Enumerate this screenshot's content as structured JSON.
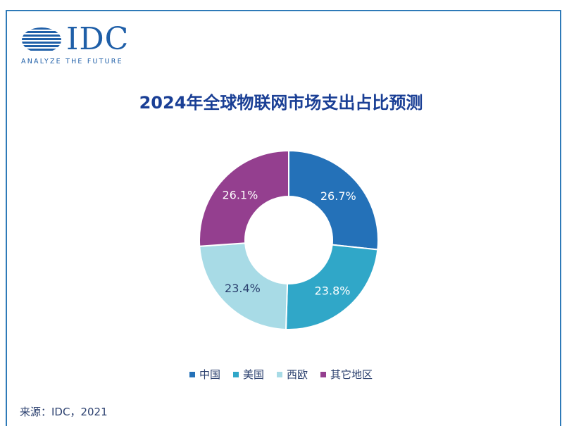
{
  "logo": {
    "wordmark": "IDC",
    "tagline": "ANALYZE THE FUTURE"
  },
  "source": "来源：IDC，2021",
  "chart_data": {
    "type": "pie",
    "donut": true,
    "title": "2024年全球物联网市场支出占比预测",
    "categories": [
      "中国",
      "美国",
      "西欧",
      "其它地区"
    ],
    "values": [
      26.7,
      23.8,
      23.4,
      26.1
    ],
    "labels": [
      "26.7%",
      "23.8%",
      "23.4%",
      "26.1%"
    ],
    "colors": [
      "#2471b8",
      "#30a7c8",
      "#a8dbe6",
      "#943f8f"
    ],
    "label_colors": [
      "#ffffff",
      "#ffffff",
      "#2a3f6e",
      "#ffffff"
    ],
    "legend_position": "bottom"
  }
}
